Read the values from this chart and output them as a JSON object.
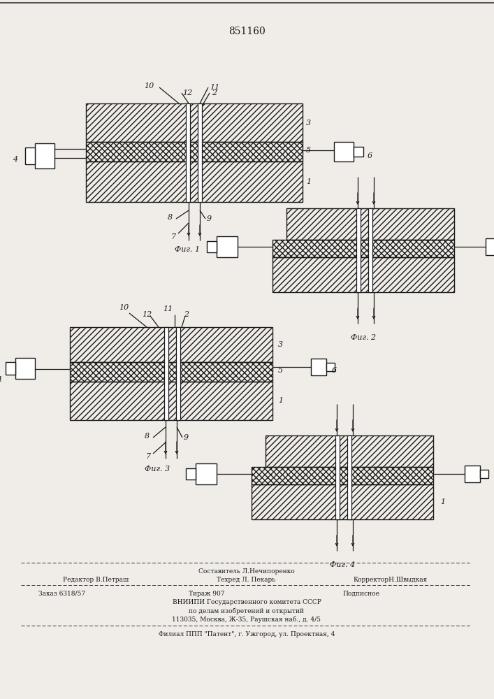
{
  "patent_number": "851160",
  "background_color": "#f0ede8",
  "line_color": "#1a1a1a",
  "fig1_caption": "Фиг. 1",
  "fig2_caption": "Фиг. 2",
  "fig3_caption": "Фиг. 3",
  "fig4_caption": "Фиг. 4",
  "footer_line0": "Составитель Л.Нечипоренко",
  "footer_line1a": "Редактор В.Петраш",
  "footer_line1b": "Техред Л. Пекарь",
  "footer_line1c": "КорректорН.Швыдкая",
  "footer_line2a": "Заказ 6318/57",
  "footer_line2b": "Тираж 907",
  "footer_line2c": "Подписное",
  "footer_line3": "ВНИИПИ Государственного комитета СССР",
  "footer_line4": "по делам изобретений и открытий",
  "footer_line5": "113035, Москва, Ж-35, Раушская наб., д. 4/5",
  "footer_line6": "Филиал ППП \"Патент\", г. Ужгород, ул. Проектная, 4"
}
